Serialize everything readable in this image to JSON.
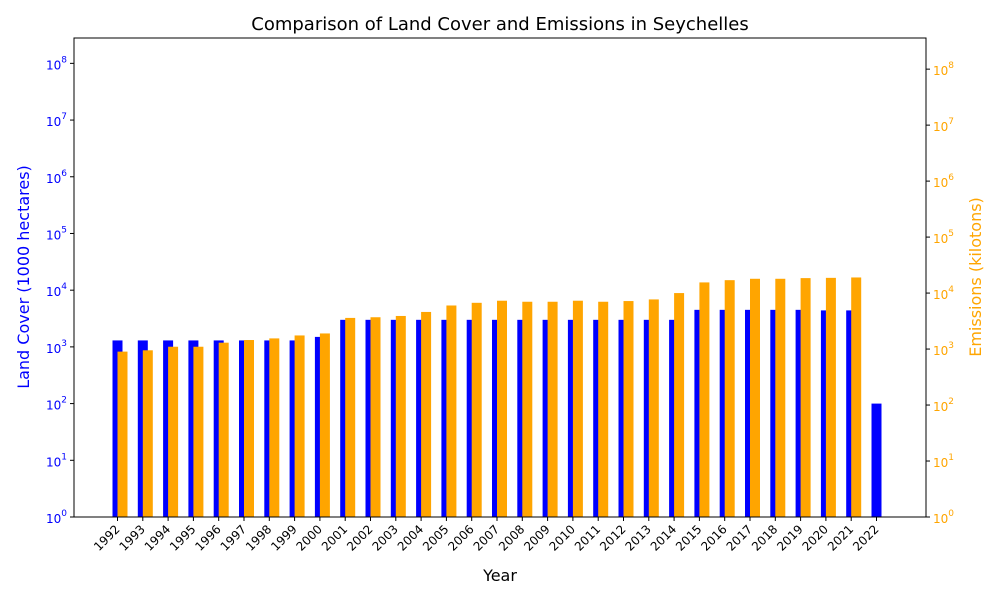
{
  "chart_data": {
    "type": "bar",
    "title": "Comparison of Land Cover and Emissions in Seychelles",
    "xlabel": "Year",
    "ylabel_left": "Land Cover (1000 hectares)",
    "ylabel_right": "Emissions (kilotons)",
    "scale": "log",
    "ylim_left": [
      1,
      280000000
    ],
    "ylim_right": [
      1,
      360000000
    ],
    "yticks_left": [
      {
        "value": 1,
        "label": "10^0"
      },
      {
        "value": 10,
        "label": "10^1"
      },
      {
        "value": 100,
        "label": "10^2"
      },
      {
        "value": 1000,
        "label": "10^3"
      },
      {
        "value": 10000,
        "label": "10^4"
      },
      {
        "value": 100000,
        "label": "10^5"
      },
      {
        "value": 1000000,
        "label": "10^6"
      },
      {
        "value": 10000000,
        "label": "10^7"
      },
      {
        "value": 100000000,
        "label": "10^8"
      }
    ],
    "yticks_right": [
      {
        "value": 1,
        "label": "10^0"
      },
      {
        "value": 10,
        "label": "10^1"
      },
      {
        "value": 100,
        "label": "10^2"
      },
      {
        "value": 1000,
        "label": "10^3"
      },
      {
        "value": 10000,
        "label": "10^4"
      },
      {
        "value": 100000,
        "label": "10^5"
      },
      {
        "value": 1000000,
        "label": "10^6"
      },
      {
        "value": 10000000,
        "label": "10^7"
      },
      {
        "value": 100000000,
        "label": "10^8"
      }
    ],
    "categories": [
      "1992",
      "1993",
      "1994",
      "1995",
      "1996",
      "1997",
      "1998",
      "1999",
      "2000",
      "2001",
      "2002",
      "2003",
      "2004",
      "2005",
      "2006",
      "2007",
      "2008",
      "2009",
      "2010",
      "2011",
      "2012",
      "2013",
      "2014",
      "2015",
      "2016",
      "2017",
      "2018",
      "2019",
      "2020",
      "2021",
      "2022"
    ],
    "series": [
      {
        "axis": "left",
        "color": "#0000ff",
        "values": [
          1300,
          1300,
          1300,
          1300,
          1300,
          1300,
          1300,
          1300,
          1500,
          3000,
          3000,
          3000,
          3000,
          3000,
          3000,
          3000,
          3000,
          3000,
          3000,
          3000,
          3000,
          3000,
          3000,
          4500,
          4500,
          4500,
          4500,
          4500,
          4400,
          4400,
          100
        ]
      },
      {
        "axis": "right",
        "color": "#ffa500",
        "values": [
          900,
          950,
          1100,
          1100,
          1300,
          1450,
          1550,
          1750,
          1900,
          3600,
          3700,
          3900,
          4600,
          6000,
          6700,
          7300,
          7000,
          7000,
          7300,
          7000,
          7200,
          7700,
          10000,
          15500,
          17000,
          18000,
          18000,
          18500,
          18700,
          19000,
          null
        ]
      }
    ],
    "colors": {
      "left_axis": "#0000ff",
      "right_axis": "#ffa500",
      "frame": "#000000"
    }
  }
}
